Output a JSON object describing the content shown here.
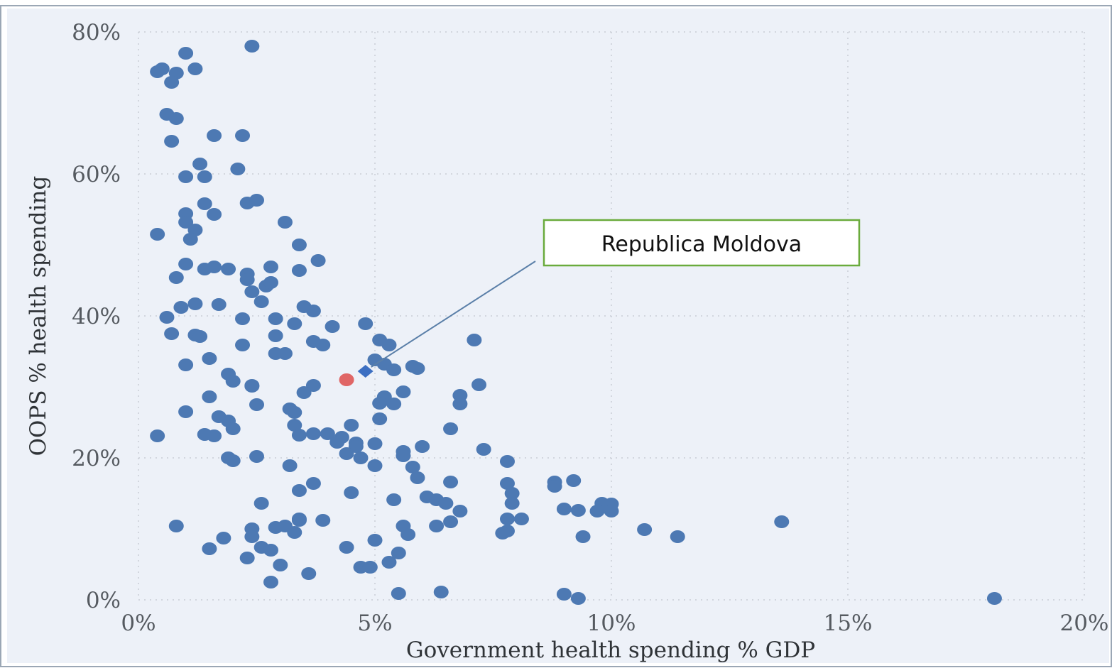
{
  "chart_data": {
    "type": "scatter",
    "title": "",
    "xlabel": "Government health spending % GDP",
    "ylabel": "OOPS % health spending",
    "xlim": [
      0,
      20
    ],
    "ylim": [
      0,
      80
    ],
    "x_ticks": [
      "0%",
      "5%",
      "10%",
      "15%",
      "20%"
    ],
    "y_ticks": [
      "0%",
      "20%",
      "40%",
      "60%",
      "80%"
    ],
    "grid": true,
    "points": [
      [
        0.4,
        74.4
      ],
      [
        0.5,
        74.8
      ],
      [
        1.0,
        77.0
      ],
      [
        0.8,
        74.2
      ],
      [
        1.2,
        74.8
      ],
      [
        2.4,
        78.0
      ],
      [
        0.7,
        72.9
      ],
      [
        0.6,
        68.4
      ],
      [
        0.8,
        67.8
      ],
      [
        0.7,
        64.6
      ],
      [
        1.6,
        65.4
      ],
      [
        2.2,
        65.4
      ],
      [
        1.3,
        61.4
      ],
      [
        1.0,
        59.6
      ],
      [
        1.4,
        59.6
      ],
      [
        2.1,
        60.7
      ],
      [
        1.4,
        55.8
      ],
      [
        2.3,
        55.9
      ],
      [
        2.5,
        56.3
      ],
      [
        1.0,
        54.4
      ],
      [
        1.6,
        54.3
      ],
      [
        0.4,
        51.5
      ],
      [
        1.0,
        53.2
      ],
      [
        1.2,
        52.1
      ],
      [
        1.1,
        50.8
      ],
      [
        3.1,
        53.2
      ],
      [
        3.4,
        50.0
      ],
      [
        3.8,
        47.8
      ],
      [
        1.0,
        47.3
      ],
      [
        1.4,
        46.6
      ],
      [
        1.6,
        46.9
      ],
      [
        1.9,
        46.6
      ],
      [
        2.8,
        46.9
      ],
      [
        3.4,
        46.4
      ],
      [
        0.8,
        45.4
      ],
      [
        2.3,
        45.9
      ],
      [
        2.3,
        45.1
      ],
      [
        2.7,
        44.2
      ],
      [
        2.8,
        44.7
      ],
      [
        2.4,
        43.4
      ],
      [
        2.6,
        42.0
      ],
      [
        0.9,
        41.2
      ],
      [
        1.2,
        41.7
      ],
      [
        1.7,
        41.6
      ],
      [
        3.5,
        41.3
      ],
      [
        3.7,
        40.7
      ],
      [
        0.6,
        39.8
      ],
      [
        2.2,
        39.6
      ],
      [
        2.9,
        39.6
      ],
      [
        3.3,
        38.9
      ],
      [
        4.1,
        38.5
      ],
      [
        4.8,
        38.9
      ],
      [
        0.7,
        37.5
      ],
      [
        1.2,
        37.3
      ],
      [
        1.3,
        37.1
      ],
      [
        2.9,
        37.2
      ],
      [
        3.7,
        36.4
      ],
      [
        3.9,
        35.9
      ],
      [
        5.1,
        36.6
      ],
      [
        5.3,
        35.9
      ],
      [
        7.1,
        36.6
      ],
      [
        2.2,
        35.9
      ],
      [
        2.9,
        34.7
      ],
      [
        3.1,
        34.7
      ],
      [
        1.5,
        34.0
      ],
      [
        5.0,
        33.8
      ],
      [
        5.2,
        33.2
      ],
      [
        5.4,
        32.4
      ],
      [
        5.8,
        32.9
      ],
      [
        5.9,
        32.6
      ],
      [
        1.0,
        33.1
      ],
      [
        1.9,
        31.8
      ],
      [
        2.0,
        30.8
      ],
      [
        2.4,
        30.2
      ],
      [
        2.4,
        30.1
      ],
      [
        3.7,
        30.2
      ],
      [
        3.5,
        29.2
      ],
      [
        5.6,
        29.3
      ],
      [
        7.2,
        30.3
      ],
      [
        1.5,
        28.6
      ],
      [
        5.2,
        28.6
      ],
      [
        6.8,
        28.8
      ],
      [
        2.5,
        27.5
      ],
      [
        5.1,
        27.7
      ],
      [
        5.4,
        27.6
      ],
      [
        6.8,
        27.6
      ],
      [
        1.0,
        26.5
      ],
      [
        3.2,
        26.9
      ],
      [
        3.3,
        26.4
      ],
      [
        1.7,
        25.8
      ],
      [
        1.9,
        25.2
      ],
      [
        5.1,
        25.5
      ],
      [
        2.0,
        24.1
      ],
      [
        3.3,
        24.6
      ],
      [
        4.5,
        24.6
      ],
      [
        6.6,
        24.1
      ],
      [
        0.4,
        23.1
      ],
      [
        1.4,
        23.3
      ],
      [
        1.6,
        23.1
      ],
      [
        3.4,
        23.2
      ],
      [
        3.7,
        23.4
      ],
      [
        4.0,
        23.4
      ],
      [
        4.3,
        22.9
      ],
      [
        4.2,
        22.2
      ],
      [
        4.6,
        22.1
      ],
      [
        4.6,
        21.6
      ],
      [
        5.0,
        22.0
      ],
      [
        4.4,
        20.6
      ],
      [
        4.7,
        20.0
      ],
      [
        5.6,
        20.9
      ],
      [
        5.6,
        20.3
      ],
      [
        6.0,
        21.6
      ],
      [
        7.3,
        21.2
      ],
      [
        1.9,
        20.0
      ],
      [
        2.0,
        19.6
      ],
      [
        2.5,
        20.2
      ],
      [
        3.2,
        18.9
      ],
      [
        5.0,
        18.9
      ],
      [
        5.8,
        18.7
      ],
      [
        7.8,
        19.5
      ],
      [
        5.9,
        17.2
      ],
      [
        6.6,
        16.6
      ],
      [
        8.8,
        16.6
      ],
      [
        9.2,
        16.8
      ],
      [
        8.8,
        16.0
      ],
      [
        7.8,
        16.4
      ],
      [
        3.7,
        16.4
      ],
      [
        3.4,
        15.4
      ],
      [
        4.5,
        15.1
      ],
      [
        6.1,
        14.5
      ],
      [
        7.9,
        15.0
      ],
      [
        5.4,
        14.1
      ],
      [
        6.3,
        14.1
      ],
      [
        6.5,
        13.6
      ],
      [
        7.9,
        13.6
      ],
      [
        2.6,
        13.6
      ],
      [
        9.0,
        12.8
      ],
      [
        9.3,
        12.6
      ],
      [
        9.8,
        13.6
      ],
      [
        10.0,
        13.5
      ],
      [
        9.7,
        12.5
      ],
      [
        10.0,
        12.5
      ],
      [
        6.8,
        12.5
      ],
      [
        3.4,
        11.2
      ],
      [
        3.4,
        11.4
      ],
      [
        3.9,
        11.2
      ],
      [
        7.8,
        11.4
      ],
      [
        8.1,
        11.4
      ],
      [
        13.6,
        11.0
      ],
      [
        0.8,
        10.4
      ],
      [
        2.4,
        10.0
      ],
      [
        2.9,
        10.2
      ],
      [
        3.1,
        10.4
      ],
      [
        5.6,
        10.4
      ],
      [
        6.3,
        10.4
      ],
      [
        6.6,
        11.0
      ],
      [
        3.3,
        9.5
      ],
      [
        2.4,
        8.9
      ],
      [
        5.7,
        9.2
      ],
      [
        7.8,
        9.7
      ],
      [
        7.7,
        9.4
      ],
      [
        9.4,
        8.9
      ],
      [
        10.7,
        9.9
      ],
      [
        11.4,
        8.9
      ],
      [
        1.8,
        8.7
      ],
      [
        5.0,
        8.4
      ],
      [
        1.5,
        7.2
      ],
      [
        2.6,
        7.4
      ],
      [
        2.8,
        7.0
      ],
      [
        4.4,
        7.4
      ],
      [
        5.5,
        6.6
      ],
      [
        2.3,
        5.9
      ],
      [
        3.0,
        4.9
      ],
      [
        4.7,
        4.6
      ],
      [
        4.9,
        4.6
      ],
      [
        5.3,
        5.3
      ],
      [
        3.6,
        3.7
      ],
      [
        2.8,
        2.5
      ],
      [
        5.5,
        0.9
      ],
      [
        6.4,
        1.1
      ],
      [
        9.0,
        0.8
      ],
      [
        9.3,
        0.2
      ],
      [
        18.1,
        0.2
      ]
    ],
    "highlighted_points": [
      {
        "label": "",
        "x": 4.4,
        "y": 31.0,
        "color": "#e06666",
        "marker": "circle"
      },
      {
        "label": "Republica Moldova",
        "x": 4.8,
        "y": 32.2,
        "color": "#3c6fc2",
        "marker": "diamond"
      }
    ],
    "annotations": [
      {
        "text": "Republica Moldova",
        "target": "Republica Moldova"
      }
    ]
  },
  "colors": {
    "plot_background": "#edf1f8",
    "grid": "#c9ced6",
    "point": "#4d79b3",
    "callout_border": "#6aab3c",
    "callout_line": "#5a7fa8"
  }
}
